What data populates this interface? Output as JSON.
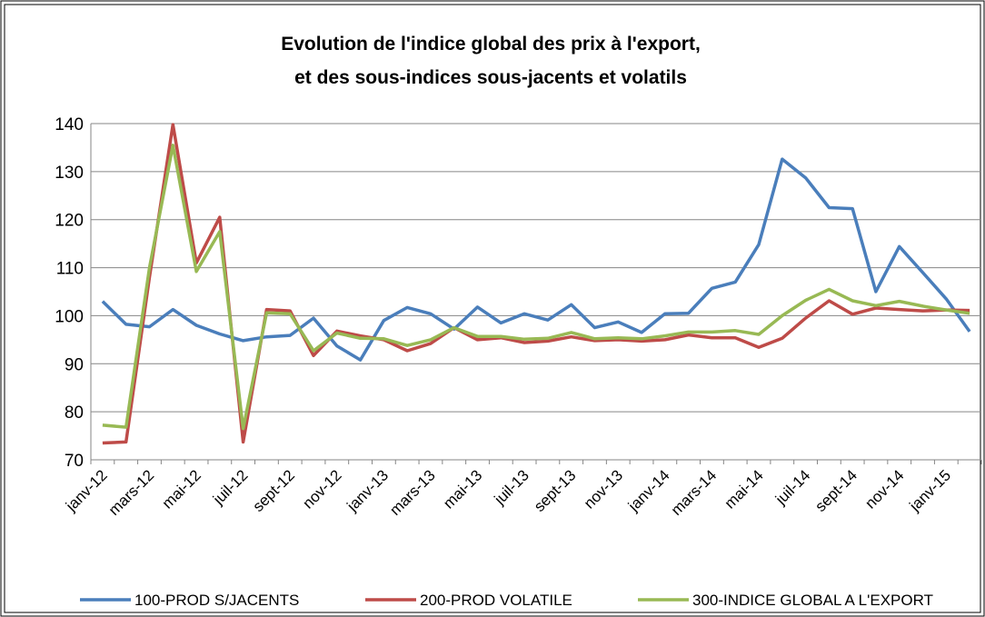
{
  "chart_data": {
    "type": "line",
    "title": [
      "Evolution de l'indice global des prix à l'export,",
      "et des sous-indices sous-jacents et volatils"
    ],
    "categories": [
      "janv-12",
      null,
      "mars-12",
      null,
      "mai-12",
      null,
      "juil-12",
      null,
      "sept-12",
      null,
      "nov-12",
      null,
      "janv-13",
      null,
      "mars-13",
      null,
      "mai-13",
      null,
      "juil-13",
      null,
      "sept-13",
      null,
      "nov-13",
      null,
      "janv-14",
      null,
      "mars-14",
      null,
      "mai-14",
      null,
      "juil-14",
      null,
      "sept-14",
      null,
      "nov-14",
      null,
      "janv-15",
      null
    ],
    "series": [
      {
        "name": "100-PROD S/JACENTS",
        "color": "#4a7ebb",
        "values": [
          103,
          98.2,
          97.7,
          101.3,
          98,
          96.2,
          94.8,
          95.6,
          95.9,
          99.5,
          93.7,
          90.8,
          99,
          101.7,
          100.4,
          97.2,
          101.8,
          98.5,
          100.4,
          99.1,
          102.3,
          97.5,
          98.7,
          96.5,
          100.4,
          100.5,
          105.7,
          107,
          114.8,
          132.6,
          128.7,
          122.5,
          122.3,
          105,
          114.4,
          109,
          103.5,
          96.7
        ]
      },
      {
        "name": "200-PROD VOLATILE",
        "color": "#be4b48",
        "values": [
          73.5,
          73.7,
          108,
          139.8,
          111,
          120.5,
          73.7,
          101.3,
          101,
          91.7,
          96.8,
          95.8,
          95,
          92.7,
          94.2,
          97.5,
          95,
          95.4,
          94.4,
          94.7,
          95.6,
          94.8,
          95,
          94.7,
          95,
          96,
          95.4,
          95.4,
          93.4,
          95.3,
          99.5,
          103.1,
          100.3,
          101.6,
          101.3,
          101,
          101.2,
          101.1
        ]
      },
      {
        "name": "300-INDICE GLOBAL A L'EXPORT",
        "color": "#98b954",
        "values": [
          77.2,
          76.8,
          110,
          135.5,
          109.2,
          117.5,
          76.5,
          100.6,
          100.4,
          92.7,
          96.4,
          95.3,
          95.2,
          93.8,
          95,
          97.5,
          95.7,
          95.7,
          95.1,
          95.3,
          96.5,
          95.2,
          95.4,
          95.2,
          95.8,
          96.6,
          96.6,
          96.9,
          96.1,
          100,
          103.2,
          105.5,
          103.1,
          102.1,
          103,
          102,
          101.2,
          100.5
        ]
      }
    ],
    "ylim": [
      70,
      140
    ],
    "yticks": [
      70,
      80,
      90,
      100,
      110,
      120,
      130,
      140
    ],
    "grid": true,
    "legend": "bottom"
  }
}
